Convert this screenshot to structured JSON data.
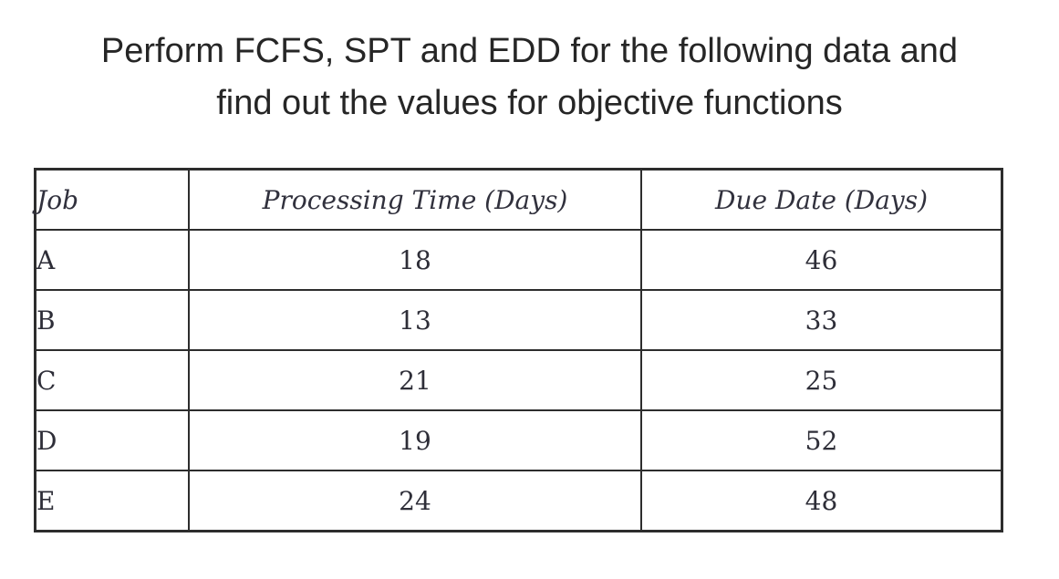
{
  "title": {
    "line1": "Perform FCFS, SPT and EDD for the following data and",
    "line2": "find out the values for objective functions"
  },
  "table": {
    "columns": [
      "Job",
      "Processing Time (Days)",
      "Due Date (Days)"
    ],
    "rows": [
      {
        "job": "A",
        "processing_time": "18",
        "due_date": "46"
      },
      {
        "job": "B",
        "processing_time": "13",
        "due_date": "33"
      },
      {
        "job": "C",
        "processing_time": "21",
        "due_date": "25"
      },
      {
        "job": "D",
        "processing_time": "19",
        "due_date": "52"
      },
      {
        "job": "E",
        "processing_time": "24",
        "due_date": "48"
      }
    ]
  },
  "colors": {
    "background": "#ffffff",
    "text": "#2e2e38",
    "border": "#2d2d2d"
  }
}
